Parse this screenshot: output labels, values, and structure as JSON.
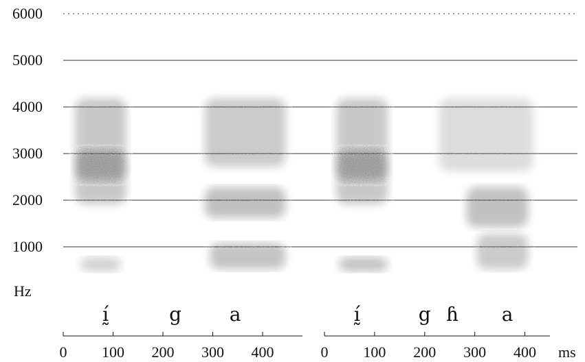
{
  "chart_data": {
    "type": "heatmap",
    "y_axis": {
      "ticks": [
        6000,
        5000,
        4000,
        3000,
        2000,
        1000
      ],
      "unit": "Hz",
      "ylim": [
        0,
        6000
      ],
      "grid": true
    },
    "panels": [
      {
        "segments": [
          {
            "label": "ḭ́",
            "time_ms": 85
          },
          {
            "label": "g",
            "time_ms": 225
          },
          {
            "label": "a",
            "time_ms": 345
          }
        ],
        "time_ticks": [
          0,
          100,
          200,
          300,
          400
        ],
        "xlim": [
          0,
          480
        ],
        "formants": [
          {
            "t0": 10,
            "t1": 140,
            "f0": 1800,
            "f1": 4300,
            "intensity": 0.9
          },
          {
            "t0": 10,
            "t1": 140,
            "f0": 2300,
            "f1": 3200,
            "intensity": 1.0
          },
          {
            "t0": 20,
            "t1": 130,
            "f0": 350,
            "f1": 900,
            "intensity": 0.7
          },
          {
            "t0": 270,
            "t1": 460,
            "f0": 1500,
            "f1": 2400,
            "intensity": 1.0
          },
          {
            "t0": 270,
            "t1": 460,
            "f0": 2600,
            "f1": 4300,
            "intensity": 0.85
          },
          {
            "t0": 280,
            "t1": 460,
            "f0": 400,
            "f1": 1200,
            "intensity": 0.95
          }
        ]
      },
      {
        "segments": [
          {
            "label": "ḭ́",
            "time_ms": 65
          },
          {
            "label": "g",
            "time_ms": 200
          },
          {
            "label": "ɦ",
            "time_ms": 255
          },
          {
            "label": "a",
            "time_ms": 365
          }
        ],
        "time_ticks": [
          0,
          100,
          200,
          300,
          400
        ],
        "xlim": [
          0,
          450
        ],
        "formants": [
          {
            "t0": 10,
            "t1": 140,
            "f0": 1800,
            "f1": 4300,
            "intensity": 0.9
          },
          {
            "t0": 10,
            "t1": 140,
            "f0": 2300,
            "f1": 3200,
            "intensity": 1.0
          },
          {
            "t0": 15,
            "t1": 140,
            "f0": 350,
            "f1": 900,
            "intensity": 0.95
          },
          {
            "t0": 215,
            "t1": 430,
            "f0": 2500,
            "f1": 4300,
            "intensity": 0.55
          },
          {
            "t0": 270,
            "t1": 420,
            "f0": 1300,
            "f1": 2400,
            "intensity": 1.0
          },
          {
            "t0": 290,
            "t1": 420,
            "f0": 400,
            "f1": 1400,
            "intensity": 0.85
          }
        ]
      }
    ],
    "x_unit": "ms"
  }
}
